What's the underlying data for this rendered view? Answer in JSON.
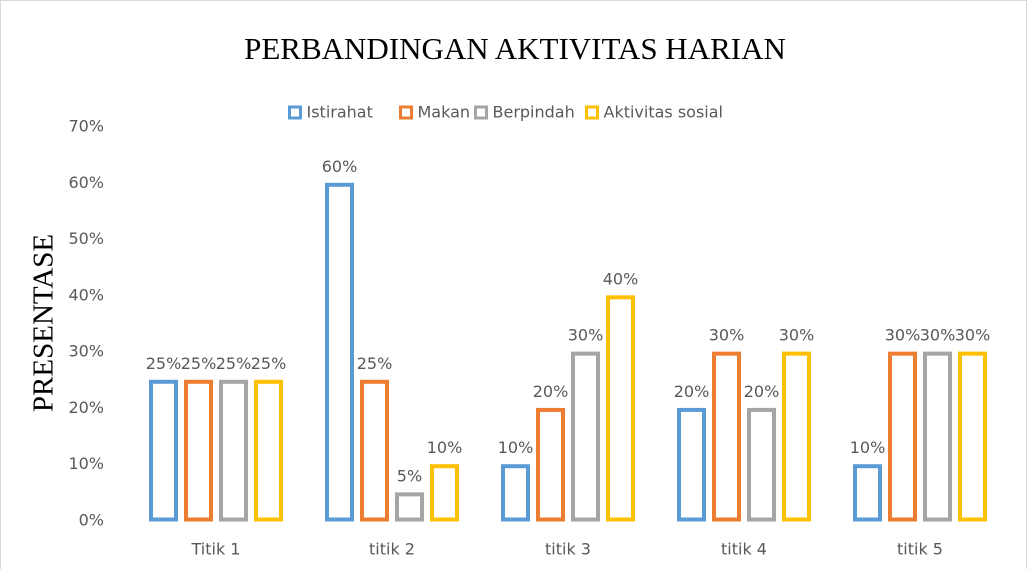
{
  "chart_data": {
    "type": "bar",
    "title": "PERBANDINGAN AKTIVITAS HARIAN",
    "y_label": "PRESENTASE",
    "categories": [
      "Titik 1",
      "titik 2",
      "titik 3",
      "titik 4",
      "titik 5"
    ],
    "series": [
      {
        "name": "Istirahat",
        "color": "#5b9bd5",
        "values": [
          25,
          60,
          10,
          20,
          10
        ],
        "value_labels": [
          "25%",
          "60%",
          "10%",
          "20%",
          "10%"
        ]
      },
      {
        "name": "Makan",
        "color": "#ed7d31",
        "values": [
          25,
          25,
          20,
          30,
          30
        ],
        "value_labels": [
          "25%",
          "25%",
          "20%",
          "30%",
          "30%"
        ]
      },
      {
        "name": "Berpindah",
        "color": "#a5a5a5",
        "values": [
          25,
          5,
          30,
          20,
          30
        ],
        "value_labels": [
          "25%",
          "5%",
          "30%",
          "20%",
          "30%"
        ]
      },
      {
        "name": "Aktivitas sosial",
        "color": "#ffc000",
        "values": [
          25,
          10,
          40,
          30,
          30
        ],
        "value_labels": [
          "25%",
          "10%",
          "40%",
          "30%",
          "30%"
        ]
      }
    ],
    "ylim": [
      0,
      70
    ],
    "yticks": [
      {
        "value": 0,
        "label": "0%"
      },
      {
        "value": 10,
        "label": "10%"
      },
      {
        "value": 20,
        "label": "20%"
      },
      {
        "value": 30,
        "label": "30%"
      },
      {
        "value": 40,
        "label": "40%"
      },
      {
        "value": 50,
        "label": "50%"
      },
      {
        "value": 60,
        "label": "60%"
      },
      {
        "value": 70,
        "label": "70%"
      }
    ],
    "grid": false,
    "legend": "top"
  }
}
